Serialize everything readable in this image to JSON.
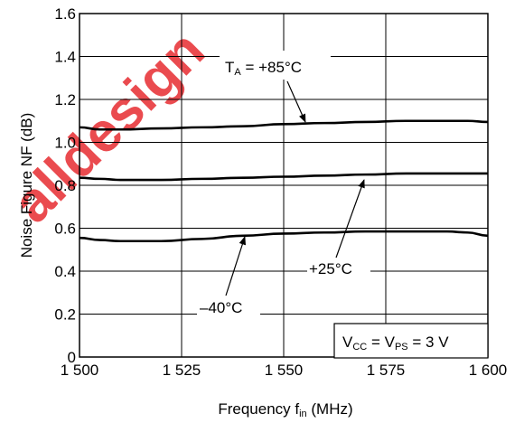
{
  "chart_data": {
    "type": "line",
    "title": "",
    "xlabel": {
      "main": "Frequency  f",
      "sub": "in",
      "unit": " (MHz)"
    },
    "ylabel": "Noise Figure  NF (dB)",
    "xlim": [
      1500,
      1600
    ],
    "ylim": [
      0,
      1.6
    ],
    "x_ticks": [
      1500,
      1525,
      1550,
      1575,
      1600
    ],
    "x_tick_labels": [
      "1 500",
      "1 525",
      "1 550",
      "1 575",
      "1 600"
    ],
    "y_ticks": [
      0,
      0.2,
      0.4,
      0.6,
      0.8,
      1.0,
      1.2,
      1.4,
      1.6
    ],
    "y_tick_labels": [
      "0",
      "0.2",
      "0.4",
      "0.6",
      "0.8",
      "1.0",
      "1.2",
      "1.4",
      "1.6"
    ],
    "grid": "major",
    "series": [
      {
        "name": "+85°C",
        "x": [
          1500,
          1505,
          1510,
          1520,
          1530,
          1540,
          1550,
          1560,
          1570,
          1580,
          1590,
          1595,
          1600
        ],
        "y": [
          1.07,
          1.06,
          1.06,
          1.065,
          1.07,
          1.075,
          1.085,
          1.09,
          1.095,
          1.1,
          1.1,
          1.1,
          1.095
        ]
      },
      {
        "name": "+25°C",
        "x": [
          1500,
          1505,
          1510,
          1520,
          1530,
          1540,
          1550,
          1560,
          1570,
          1580,
          1590,
          1595,
          1600
        ],
        "y": [
          0.835,
          0.83,
          0.825,
          0.825,
          0.83,
          0.835,
          0.84,
          0.845,
          0.85,
          0.855,
          0.855,
          0.855,
          0.855
        ]
      },
      {
        "name": "–40°C",
        "x": [
          1500,
          1505,
          1510,
          1520,
          1530,
          1540,
          1550,
          1560,
          1570,
          1580,
          1590,
          1595,
          1600
        ],
        "y": [
          0.555,
          0.545,
          0.54,
          0.54,
          0.55,
          0.565,
          0.575,
          0.58,
          0.585,
          0.585,
          0.585,
          0.58,
          0.565
        ]
      }
    ],
    "annotations": {
      "ta_label": {
        "main": "T",
        "sub": "A",
        "rest": " = +85°C"
      },
      "t25_label": "+25°C",
      "tm40_label": "–40°C",
      "conditions": {
        "v1": "V",
        "s1": "CC",
        "mid": " = V",
        "s2": "PS",
        "rest": " = 3 V"
      }
    },
    "watermark": {
      "text": "alldesign",
      "color": "#e8383d"
    },
    "colors": {
      "line": "#000000",
      "grid": "#000000",
      "background": "#ffffff"
    }
  }
}
